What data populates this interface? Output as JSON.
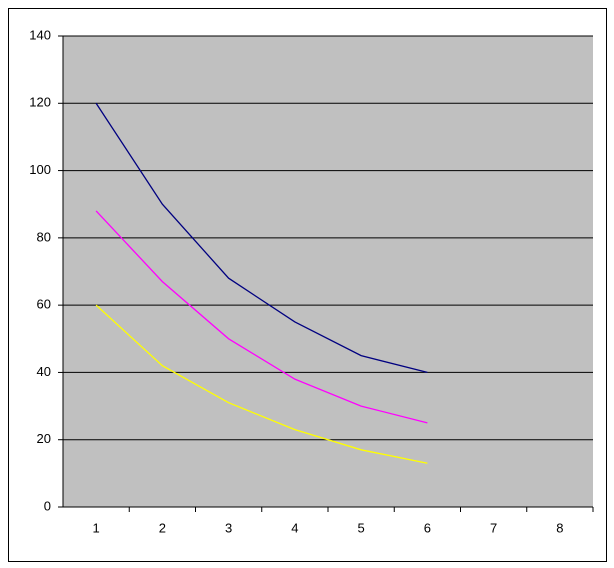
{
  "chart_data": {
    "type": "line",
    "categories": [
      "1",
      "2",
      "3",
      "4",
      "5",
      "6",
      "7",
      "8"
    ],
    "series": [
      {
        "color": "#000080",
        "values": [
          120,
          90,
          68,
          55,
          45,
          40,
          null,
          null
        ]
      },
      {
        "color": "#ff00ff",
        "values": [
          88,
          67,
          50,
          38,
          30,
          25,
          null,
          null
        ]
      },
      {
        "color": "#ffff00",
        "values": [
          60,
          42,
          31,
          23,
          17,
          13,
          null,
          null
        ]
      }
    ],
    "ylim": [
      0,
      140
    ],
    "yticks": [
      0,
      20,
      40,
      60,
      80,
      100,
      120,
      140
    ],
    "grid": true,
    "plot_background": "#c0c0c0"
  }
}
